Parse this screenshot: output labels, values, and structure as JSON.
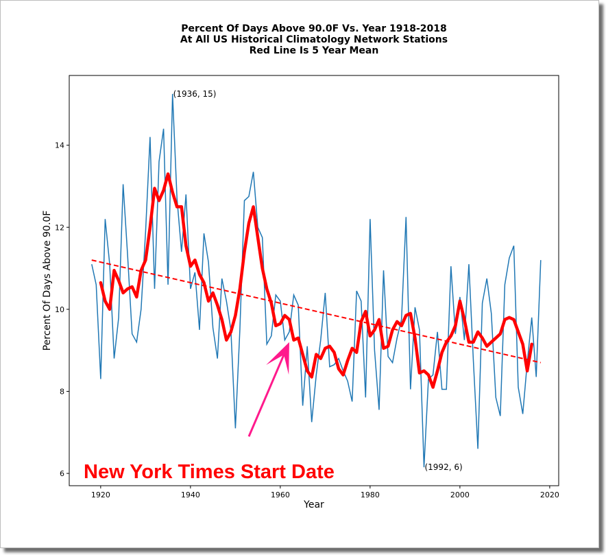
{
  "chart_data": {
    "type": "line",
    "title_lines": [
      "Percent Of Days Above 90.0F Vs. Year 1918-2018",
      "At All US Historical Climatology Network Stations",
      "Red Line Is 5 Year Mean"
    ],
    "xlabel": "Year",
    "ylabel": "Percent Of Days Above 90.0F",
    "xlim": [
      1913,
      2022
    ],
    "ylim": [
      5.7,
      15.7
    ],
    "xticks": [
      1920,
      1940,
      1960,
      1980,
      2000,
      2020
    ],
    "yticks": [
      6,
      8,
      10,
      12,
      14
    ],
    "grid": false,
    "series": [
      {
        "color": "#1f77b4",
        "x": [
          1918,
          1919,
          1920,
          1921,
          1922,
          1923,
          1924,
          1925,
          1926,
          1927,
          1928,
          1929,
          1930,
          1931,
          1932,
          1933,
          1934,
          1935,
          1936,
          1937,
          1938,
          1939,
          1940,
          1941,
          1942,
          1943,
          1944,
          1945,
          1946,
          1947,
          1948,
          1949,
          1950,
          1951,
          1952,
          1953,
          1954,
          1955,
          1956,
          1957,
          1958,
          1959,
          1960,
          1961,
          1962,
          1963,
          1964,
          1965,
          1966,
          1967,
          1968,
          1969,
          1970,
          1971,
          1972,
          1973,
          1974,
          1975,
          1976,
          1977,
          1978,
          1979,
          1980,
          1981,
          1982,
          1983,
          1984,
          1985,
          1986,
          1987,
          1988,
          1989,
          1990,
          1991,
          1992,
          1993,
          1994,
          1995,
          1996,
          1997,
          1998,
          1999,
          2000,
          2001,
          2002,
          2003,
          2004,
          2005,
          2006,
          2007,
          2008,
          2009,
          2010,
          2011,
          2012,
          2013,
          2014,
          2015,
          2016,
          2017,
          2018
        ],
        "y": [
          11.1,
          10.6,
          8.3,
          12.2,
          11.1,
          8.8,
          9.8,
          13.05,
          11.3,
          9.4,
          9.2,
          10.0,
          11.9,
          14.2,
          10.5,
          13.6,
          14.4,
          10.6,
          15.25,
          12.7,
          11.4,
          12.8,
          10.5,
          10.9,
          9.5,
          11.85,
          11.15,
          9.55,
          8.8,
          10.75,
          10.2,
          9.5,
          7.1,
          9.5,
          12.65,
          12.75,
          13.35,
          12.0,
          11.75,
          9.15,
          9.35,
          10.35,
          10.2,
          9.25,
          9.45,
          10.35,
          10.1,
          7.65,
          9.1,
          7.25,
          8.4,
          9.25,
          10.4,
          8.6,
          8.65,
          8.8,
          8.5,
          8.25,
          7.75,
          10.45,
          10.2,
          7.85,
          12.2,
          9.0,
          7.55,
          10.95,
          8.85,
          8.7,
          9.3,
          9.75,
          12.25,
          8.05,
          10.05,
          9.5,
          6.15,
          8.3,
          8.4,
          9.45,
          8.05,
          8.05,
          11.05,
          9.4,
          10.3,
          9.25,
          11.1,
          8.75,
          6.6,
          10.15,
          10.75,
          9.9,
          7.85,
          7.4,
          10.6,
          11.25,
          11.55,
          8.1,
          7.45,
          8.7,
          9.8,
          8.35,
          11.2
        ]
      },
      {
        "name": "5 Year Mean",
        "color": "#ff0000",
        "x": [
          1920,
          1921,
          1922,
          1923,
          1924,
          1925,
          1926,
          1927,
          1928,
          1929,
          1930,
          1931,
          1932,
          1933,
          1934,
          1935,
          1936,
          1937,
          1938,
          1939,
          1940,
          1941,
          1942,
          1943,
          1944,
          1945,
          1946,
          1947,
          1948,
          1949,
          1950,
          1951,
          1952,
          1953,
          1954,
          1955,
          1956,
          1957,
          1958,
          1959,
          1960,
          1961,
          1962,
          1963,
          1964,
          1965,
          1966,
          1967,
          1968,
          1969,
          1970,
          1971,
          1972,
          1973,
          1974,
          1975,
          1976,
          1977,
          1978,
          1979,
          1980,
          1981,
          1982,
          1983,
          1984,
          1985,
          1986,
          1987,
          1988,
          1989,
          1990,
          1991,
          1992,
          1993,
          1994,
          1995,
          1996,
          1997,
          1998,
          1999,
          2000,
          2001,
          2002,
          2003,
          2004,
          2005,
          2006,
          2007,
          2008,
          2009,
          2010,
          2011,
          2012,
          2013,
          2014,
          2015,
          2016
        ],
        "y": [
          10.65,
          10.2,
          10.0,
          10.95,
          10.7,
          10.4,
          10.5,
          10.55,
          10.3,
          10.95,
          11.2,
          12.0,
          12.95,
          12.65,
          12.9,
          13.3,
          12.85,
          12.5,
          12.5,
          11.55,
          11.05,
          11.2,
          10.85,
          10.65,
          10.2,
          10.4,
          10.1,
          9.75,
          9.25,
          9.45,
          9.85,
          10.5,
          11.4,
          12.1,
          12.5,
          11.75,
          11.0,
          10.5,
          10.15,
          9.6,
          9.65,
          9.85,
          9.75,
          9.25,
          9.3,
          8.9,
          8.5,
          8.35,
          8.9,
          8.8,
          9.05,
          9.1,
          8.95,
          8.55,
          8.4,
          8.75,
          9.05,
          8.95,
          9.7,
          9.95,
          9.35,
          9.5,
          9.75,
          9.05,
          9.1,
          9.5,
          9.7,
          9.6,
          9.85,
          9.9,
          9.3,
          8.45,
          8.5,
          8.4,
          8.1,
          8.5,
          8.95,
          9.2,
          9.35,
          9.6,
          10.2,
          9.75,
          9.2,
          9.2,
          9.45,
          9.3,
          9.1,
          9.2,
          9.3,
          9.4,
          9.75,
          9.8,
          9.75,
          9.45,
          9.15,
          8.5,
          9.15
        ]
      }
    ],
    "trend": {
      "color": "#ff0000",
      "style": "dashed",
      "x": [
        1918,
        2018
      ],
      "y": [
        11.2,
        8.7
      ]
    },
    "annotations": [
      {
        "text": "(1936, 15)",
        "x": 1936,
        "y": 15.25
      },
      {
        "text": "(1992, 6)",
        "x": 1992,
        "y": 6.15
      }
    ],
    "callout": {
      "text": "New York Times Start Date",
      "color": "#ff0000",
      "arrow_color": "#ff1a8c",
      "arrow_from": [
        1953,
        6.9
      ],
      "arrow_to": [
        1962,
        9.2
      ]
    }
  }
}
